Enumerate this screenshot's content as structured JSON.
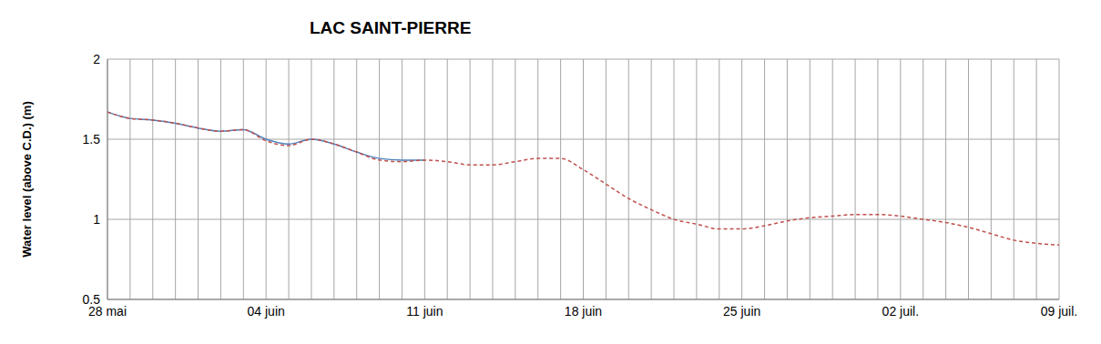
{
  "chart_data": {
    "type": "line",
    "title": "LAC SAINT-PIERRE",
    "y_label": "Water level (above C.D.) (m)",
    "categories": [
      "28 mai",
      null,
      null,
      null,
      null,
      null,
      null,
      "04 juin",
      null,
      null,
      null,
      null,
      null,
      null,
      "11 juin",
      null,
      null,
      null,
      null,
      null,
      null,
      "18 juin",
      null,
      null,
      null,
      null,
      null,
      null,
      "25 juin",
      null,
      null,
      null,
      null,
      null,
      null,
      "02 juil.",
      null,
      null,
      null,
      null,
      null,
      null,
      "09 juil."
    ],
    "series": [
      {
        "color": "#4f81bd",
        "line_style": "solid",
        "values": [
          1.67,
          1.63,
          1.62,
          1.6,
          1.57,
          1.55,
          1.56,
          1.5,
          1.47,
          1.5,
          1.47,
          1.42,
          1.38,
          1.37,
          1.37,
          null,
          null,
          null,
          null,
          null,
          null,
          null,
          null,
          null,
          null,
          null,
          null,
          null,
          null,
          null,
          null,
          null,
          null,
          null,
          null,
          null,
          null,
          null,
          null,
          null,
          null,
          null,
          null
        ]
      },
      {
        "color": "#c0504d",
        "line_style": "dashed",
        "values": [
          1.67,
          1.63,
          1.62,
          1.6,
          1.57,
          1.55,
          1.56,
          1.49,
          1.46,
          1.5,
          1.47,
          1.42,
          1.37,
          1.36,
          1.37,
          1.36,
          1.34,
          1.34,
          1.36,
          1.38,
          1.38,
          1.31,
          1.22,
          1.13,
          1.06,
          1.0,
          0.97,
          0.94,
          0.94,
          0.96,
          0.99,
          1.01,
          1.02,
          1.03,
          1.03,
          1.02,
          1.0,
          0.98,
          0.95,
          0.91,
          0.87,
          0.85,
          0.84
        ]
      }
    ],
    "ylim": [
      0.5,
      2
    ],
    "yticks": [
      0.5,
      1,
      1.5,
      2
    ],
    "grid": true
  }
}
